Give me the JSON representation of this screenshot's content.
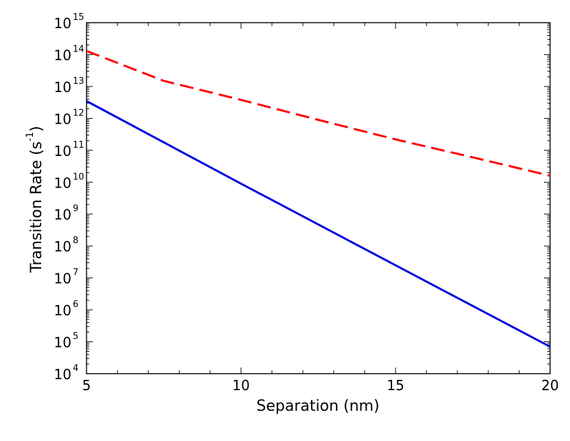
{
  "chart_data": {
    "type": "line",
    "xlabel": "Separation (nm)",
    "ylabel": "Transition Rate (s",
    "ylabel_unit_exponent": "-1",
    "ylabel_close": ")",
    "xlim": [
      5,
      20
    ],
    "ylim": [
      10000,
      1000000000000000
    ],
    "y_scale": "log",
    "grid": false,
    "x_ticks": [
      5,
      10,
      15,
      20
    ],
    "x_tick_labels": [
      "5",
      "10",
      "15",
      "20"
    ],
    "y_ticks": [
      10000,
      100000,
      1000000,
      10000000,
      100000000,
      1000000000,
      10000000000,
      100000000000,
      1000000000000,
      10000000000000,
      100000000000000,
      1000000000000000
    ],
    "y_tick_base": "10",
    "y_tick_exponents": [
      "4",
      "5",
      "6",
      "7",
      "8",
      "9",
      "10",
      "11",
      "12",
      "13",
      "14",
      "15"
    ],
    "series": [
      {
        "color": "#ff0000",
        "line_style": "dashed",
        "x": [
          5,
          7.5,
          10,
          12.5,
          15,
          17.5,
          20
        ],
        "y": [
          130000000000000,
          15000000000000,
          3800000000000,
          900000000000,
          220000000000,
          60000000000,
          16000000000
        ]
      },
      {
        "color": "#0000dd",
        "line_style": "solid",
        "x": [
          5,
          10,
          15,
          20
        ],
        "y": [
          3500000000000,
          9000000000,
          25000000,
          70000
        ]
      }
    ]
  }
}
